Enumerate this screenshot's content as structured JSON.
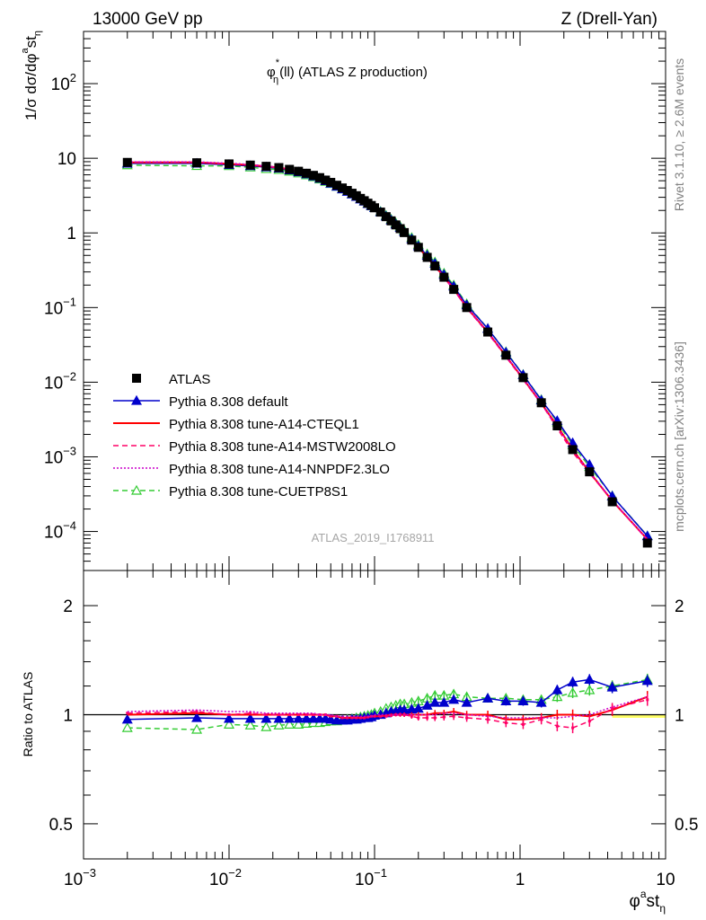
{
  "header": {
    "left": "13000 GeV pp",
    "right": "Z (Drell-Yan)"
  },
  "side_labels": {
    "rivet": "Rivet 3.1.10, ≥ 2.6M events",
    "mcplots": "mcplots.cern.ch [arXiv:1306.3436]"
  },
  "watermark": "ATLAS_2019_I1768911",
  "chart_data": [
    {
      "type": "line",
      "title": "φ*η(ll) (ATLAS Z production)",
      "title_parts": {
        "phi": "φ",
        "star": "*",
        "eta": "η",
        "rest": "(ll) (ATLAS Z production)"
      },
      "ylabel": "1/σ dσ/dφ^{a}st_{η}",
      "ylabel_parts": {
        "a": "1/σ dσ/dφ",
        "b": "a",
        "c": "st",
        "d": "η"
      },
      "x_scale": "log",
      "y_scale": "log",
      "xlim": [
        0.001,
        10
      ],
      "ylim": [
        3e-05,
        500
      ],
      "y_ticks": [
        {
          "v": 100,
          "base": "10",
          "exp": "2"
        },
        {
          "v": 10,
          "base": "10",
          "exp": ""
        },
        {
          "v": 1,
          "base": "1",
          "exp": ""
        },
        {
          "v": 0.1,
          "base": "10",
          "exp": "−1"
        },
        {
          "v": 0.01,
          "base": "10",
          "exp": "−2"
        },
        {
          "v": 0.001,
          "base": "10",
          "exp": "−3"
        },
        {
          "v": 0.0001,
          "base": "10",
          "exp": "−4"
        }
      ],
      "legend_position": "lower-left",
      "x": [
        0.002,
        0.006,
        0.01,
        0.014,
        0.018,
        0.022,
        0.026,
        0.03,
        0.034,
        0.038,
        0.042,
        0.046,
        0.05,
        0.055,
        0.06,
        0.065,
        0.07,
        0.075,
        0.08,
        0.085,
        0.09,
        0.095,
        0.1,
        0.11,
        0.12,
        0.13,
        0.14,
        0.15,
        0.16,
        0.18,
        0.2,
        0.23,
        0.26,
        0.3,
        0.35,
        0.43,
        0.6,
        0.8,
        1.05,
        1.4,
        1.8,
        2.3,
        3.0,
        4.3,
        7.5
      ],
      "series": [
        {
          "name": "ATLAS",
          "style": "data",
          "color": "#000000",
          "values": [
            8.8,
            8.7,
            8.4,
            8.1,
            7.8,
            7.5,
            7.1,
            6.7,
            6.3,
            5.9,
            5.5,
            5.1,
            4.75,
            4.35,
            4.0,
            3.7,
            3.4,
            3.15,
            2.9,
            2.7,
            2.5,
            2.33,
            2.17,
            1.9,
            1.65,
            1.45,
            1.28,
            1.14,
            1.01,
            0.8,
            0.64,
            0.47,
            0.36,
            0.255,
            0.175,
            0.1,
            0.047,
            0.023,
            0.0115,
            0.0053,
            0.0026,
            0.00125,
            0.00063,
            0.00025,
            7e-05
          ]
        },
        {
          "name": "Pythia 8.308 default",
          "style": "line-filled-triangle",
          "color": "#0000cc",
          "ratio": [
            0.97,
            0.98,
            0.975,
            0.975,
            0.975,
            0.975,
            0.975,
            0.975,
            0.975,
            0.975,
            0.975,
            0.975,
            0.97,
            0.965,
            0.965,
            0.965,
            0.97,
            0.97,
            0.975,
            0.98,
            0.98,
            0.985,
            0.995,
            1.0,
            1.01,
            1.02,
            1.02,
            1.03,
            1.03,
            1.035,
            1.04,
            1.06,
            1.08,
            1.08,
            1.1,
            1.08,
            1.11,
            1.09,
            1.09,
            1.08,
            1.17,
            1.23,
            1.25,
            1.19,
            1.24
          ]
        },
        {
          "name": "Pythia 8.308 tune-A14-CTEQL1",
          "style": "solid",
          "color": "#ff0000",
          "ratio": [
            1.0,
            1.01,
            1.0,
            1.0,
            1.0,
            1.0,
            1.0,
            1.0,
            1.0,
            1.0,
            1.0,
            1.0,
            0.99,
            0.99,
            0.98,
            0.98,
            0.98,
            0.98,
            0.98,
            0.98,
            0.985,
            0.99,
            0.99,
            0.99,
            0.995,
            1.0,
            1.0,
            1.0,
            1.0,
            1.0,
            1.0,
            1.0,
            1.01,
            1.01,
            1.02,
            1.0,
            1.0,
            0.97,
            0.97,
            0.98,
            1.0,
            1.0,
            0.99,
            1.03,
            1.12
          ]
        },
        {
          "name": "Pythia 8.308 tune-A14-MSTW2008LO",
          "style": "dashed",
          "color": "#ff0066",
          "ratio": [
            1.01,
            1.02,
            1.0,
            1.01,
            1.0,
            1.0,
            1.0,
            1.0,
            1.0,
            1.0,
            1.0,
            1.0,
            0.99,
            0.99,
            0.98,
            0.98,
            0.98,
            0.98,
            0.98,
            0.98,
            0.985,
            0.99,
            0.99,
            0.99,
            0.99,
            0.995,
            1.0,
            1.0,
            1.0,
            0.99,
            0.98,
            0.98,
            0.98,
            0.985,
            0.99,
            0.98,
            0.97,
            0.95,
            0.94,
            0.97,
            0.93,
            0.92,
            0.96,
            1.04,
            1.1
          ]
        },
        {
          "name": "Pythia 8.308 tune-A14-NNPDF2.3LO",
          "style": "dotted",
          "color": "#cc00cc",
          "ratio": [
            1.02,
            1.03,
            1.02,
            1.02,
            1.01,
            1.01,
            1.01,
            1.01,
            1.01,
            1.01,
            1.0,
            1.0,
            1.0,
            0.99,
            0.99,
            0.99,
            0.99,
            0.99,
            0.99,
            0.99,
            0.99,
            0.99,
            1.0,
            1.0,
            1.0,
            1.0,
            1.0,
            1.0,
            1.0,
            1.0,
            1.0,
            1.0,
            1.0,
            1.01,
            1.01,
            1.0,
            0.99,
            0.98,
            0.98,
            0.98,
            0.98,
            0.99,
            1.0,
            1.05,
            1.12
          ]
        },
        {
          "name": "Pythia 8.308 tune-CUETP8S1",
          "style": "dashed-open-triangle",
          "color": "#33cc33",
          "ratio": [
            0.92,
            0.91,
            0.94,
            0.935,
            0.925,
            0.935,
            0.94,
            0.94,
            0.945,
            0.95,
            0.95,
            0.955,
            0.96,
            0.96,
            0.965,
            0.97,
            0.975,
            0.98,
            0.985,
            0.99,
            0.995,
            1.0,
            1.01,
            1.02,
            1.04,
            1.05,
            1.06,
            1.07,
            1.07,
            1.08,
            1.09,
            1.11,
            1.13,
            1.13,
            1.14,
            1.12,
            1.11,
            1.11,
            1.1,
            1.1,
            1.12,
            1.15,
            1.17,
            1.2,
            1.25
          ]
        }
      ]
    },
    {
      "type": "line",
      "ylabel": "Ratio to ATLAS",
      "x_scale": "log",
      "y_scale": "log",
      "xlim": [
        0.001,
        10
      ],
      "ylim": [
        0.4,
        2.5
      ],
      "y_ticks": [
        0.5,
        1,
        2
      ],
      "y_tick_labels": [
        "0.5",
        "1",
        "2"
      ],
      "x_ticks": [
        {
          "v": 0.001,
          "base": "10",
          "exp": "−3"
        },
        {
          "v": 0.01,
          "base": "10",
          "exp": "−2"
        },
        {
          "v": 0.1,
          "base": "10",
          "exp": "−1"
        },
        {
          "v": 1,
          "base": "1",
          "exp": ""
        },
        {
          "v": 10,
          "base": "10",
          "exp": ""
        }
      ],
      "xlabel": "φ^{a}st_{η}",
      "xlabel_parts": {
        "a": "φ",
        "b": "a",
        "c": "st",
        "d": "η"
      },
      "reference": 1.0,
      "reference_color": "#ffff66"
    }
  ]
}
